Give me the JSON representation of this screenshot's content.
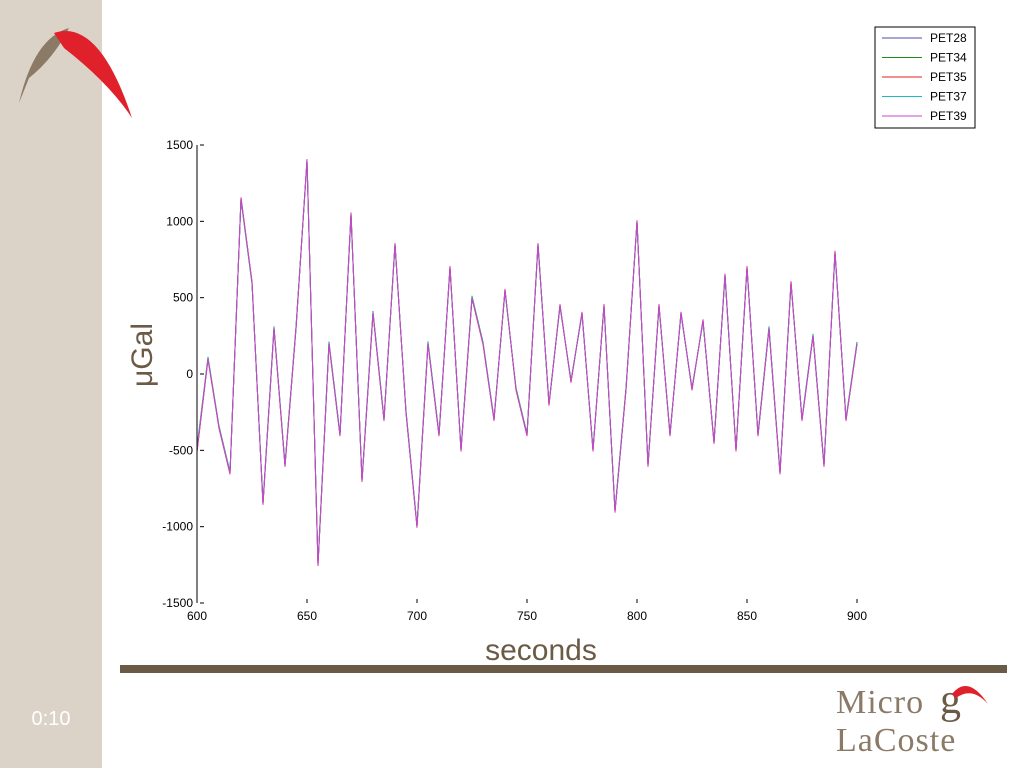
{
  "slide": {
    "timer": "0:10"
  },
  "brand": {
    "line1": "Micro",
    "g": "g",
    "line2": "LaCoste"
  },
  "colors": {
    "sidebar": "#dcd3c8",
    "accent_brown": "#6b5a45",
    "logo_red": "#e0202a"
  },
  "chart_data": {
    "type": "line",
    "title": "",
    "xlabel": "seconds",
    "ylabel": "μGal",
    "xlim": [
      600,
      900
    ],
    "ylim": [
      -1500,
      1500
    ],
    "xticks": [
      600,
      650,
      700,
      750,
      800,
      850,
      900
    ],
    "yticks": [
      -1500,
      -1000,
      -500,
      0,
      500,
      1000,
      1500
    ],
    "legend_position": "top-right",
    "grid": false,
    "x": [
      600,
      605,
      610,
      615,
      620,
      625,
      630,
      635,
      640,
      645,
      650,
      655,
      660,
      665,
      670,
      675,
      680,
      685,
      690,
      695,
      700,
      705,
      710,
      715,
      720,
      725,
      730,
      735,
      740,
      745,
      750,
      755,
      760,
      765,
      770,
      775,
      780,
      785,
      790,
      795,
      800,
      805,
      810,
      815,
      820,
      825,
      830,
      835,
      840,
      845,
      850,
      855,
      860,
      865,
      870,
      875,
      880,
      885,
      890,
      895,
      900
    ],
    "series": [
      {
        "name": "PET28",
        "color": "#4b4bb0",
        "values": [
          -500,
          100,
          -350,
          -650,
          1150,
          600,
          -850,
          300,
          -600,
          300,
          1400,
          -1250,
          200,
          -400,
          1050,
          -700,
          400,
          -300,
          850,
          -250,
          -1000,
          200,
          -400,
          700,
          -500,
          500,
          200,
          -300,
          550,
          -100,
          -400,
          850,
          -200,
          450,
          -50,
          400,
          -500,
          450,
          -900,
          -100,
          1000,
          -600,
          450,
          -400,
          400,
          -100,
          350,
          -450,
          650,
          -500,
          700,
          -400,
          300,
          -650,
          600,
          -300,
          250,
          -600,
          800,
          -300,
          200
        ]
      },
      {
        "name": "PET34",
        "color": "#228b22",
        "values": [
          -480,
          110,
          -340,
          -640,
          1140,
          590,
          -840,
          310,
          -590,
          310,
          1390,
          -1240,
          210,
          -390,
          1040,
          -690,
          410,
          -290,
          840,
          -240,
          -990,
          210,
          -390,
          690,
          -490,
          510,
          210,
          -290,
          540,
          -90,
          -390,
          840,
          -190,
          440,
          -40,
          390,
          -490,
          440,
          -890,
          -90,
          990,
          -590,
          440,
          -390,
          390,
          -90,
          340,
          -440,
          640,
          -490,
          690,
          -390,
          310,
          -640,
          590,
          -290,
          260,
          -590,
          790,
          -290,
          210
        ]
      },
      {
        "name": "PET35",
        "color": "#e02020",
        "values": [
          -510,
          95,
          -355,
          -655,
          1155,
          605,
          -855,
          295,
          -605,
          295,
          1405,
          -1255,
          195,
          -405,
          1055,
          -705,
          395,
          -305,
          855,
          -255,
          -1005,
          195,
          -405,
          705,
          -505,
          495,
          195,
          -305,
          555,
          -105,
          -405,
          855,
          -205,
          455,
          -55,
          405,
          -505,
          455,
          -905,
          -105,
          1005,
          -605,
          455,
          -405,
          405,
          -105,
          355,
          -455,
          655,
          -505,
          705,
          -405,
          295,
          -655,
          605,
          -305,
          245,
          -605,
          805,
          -305,
          195
        ]
      },
      {
        "name": "PET37",
        "color": "#20b8c8",
        "values": [
          -490,
          105,
          -345,
          -645,
          1145,
          595,
          -845,
          305,
          -595,
          305,
          1395,
          -1245,
          205,
          -395,
          1045,
          -695,
          405,
          -295,
          845,
          -245,
          -995,
          205,
          -395,
          695,
          -495,
          505,
          205,
          -295,
          545,
          -95,
          -395,
          845,
          -195,
          445,
          -45,
          395,
          -495,
          445,
          -895,
          -95,
          995,
          -595,
          445,
          -395,
          395,
          -95,
          345,
          -445,
          645,
          -495,
          695,
          -395,
          305,
          -645,
          595,
          -295,
          255,
          -595,
          795,
          -295,
          205
        ]
      },
      {
        "name": "PET39",
        "color": "#cc44cc",
        "values": [
          -505,
          98,
          -352,
          -652,
          1152,
          602,
          -852,
          298,
          -602,
          298,
          1402,
          -1252,
          198,
          -402,
          1052,
          -702,
          398,
          -302,
          852,
          -252,
          -1002,
          198,
          -402,
          702,
          -502,
          498,
          198,
          -302,
          552,
          -102,
          -402,
          852,
          -202,
          452,
          -52,
          402,
          -502,
          452,
          -902,
          -102,
          1002,
          -602,
          452,
          -402,
          402,
          -102,
          352,
          -452,
          652,
          -502,
          702,
          -402,
          298,
          -652,
          602,
          -302,
          248,
          -602,
          802,
          -302,
          198
        ]
      }
    ]
  }
}
